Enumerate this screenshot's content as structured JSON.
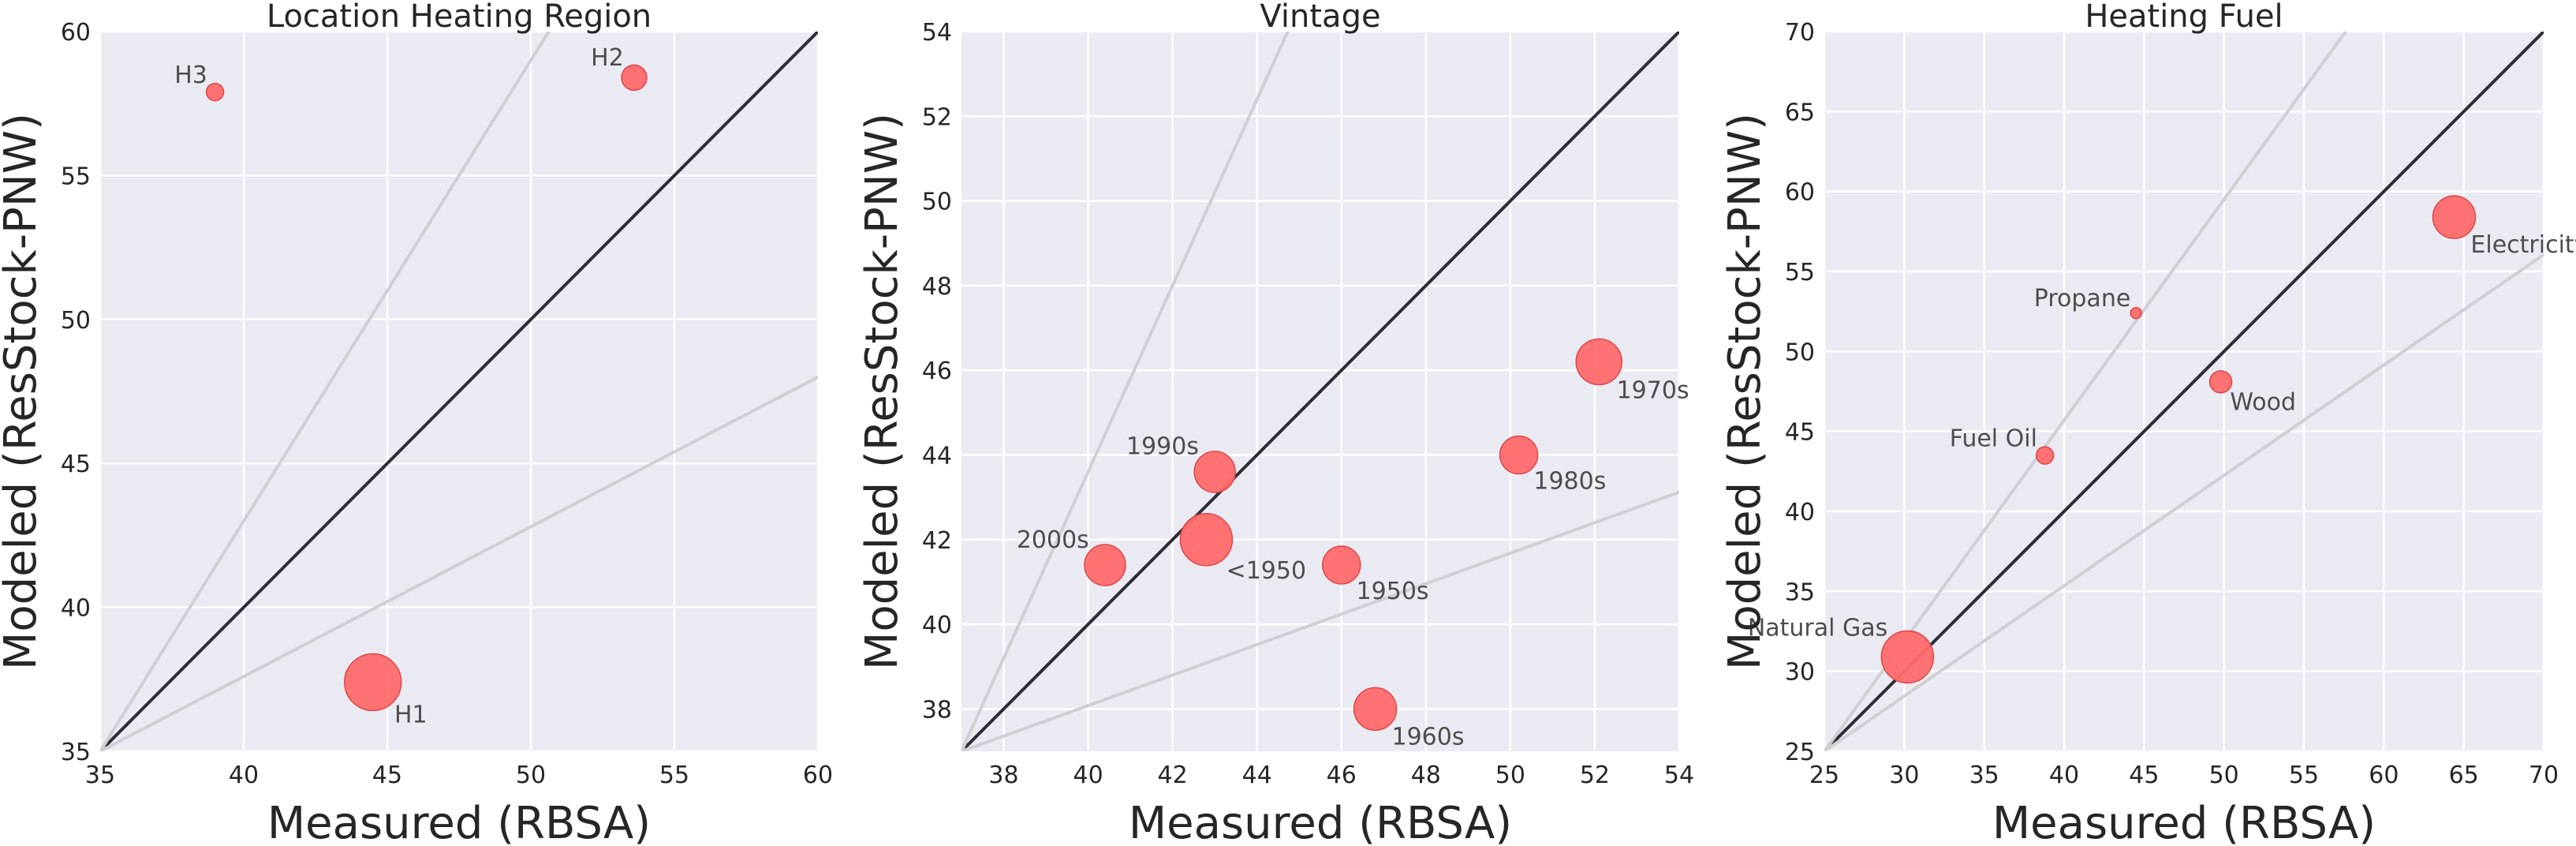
{
  "figure": {
    "x_label": "Measured (RBSA)",
    "y_label": "Modeled (ResStock-PNW)"
  },
  "colors": {
    "background": "#eaeaf2",
    "grid": "#ffffff",
    "points": "#ff6b6b",
    "identity_line": "#2e2e38",
    "reference_lines": "#cfcfd4"
  },
  "chart_data": [
    {
      "type": "scatter",
      "title": "Location Heating Region",
      "xlabel": "Measured (RBSA)",
      "ylabel": "Modeled (ResStock-PNW)",
      "xlim": [
        35,
        60
      ],
      "ylim": [
        35,
        60
      ],
      "xticks": [
        35,
        40,
        45,
        50,
        55,
        60
      ],
      "yticks": [
        35,
        40,
        45,
        50,
        55,
        60
      ],
      "grid": true,
      "reference_slopes": [
        1.0,
        1.6,
        0.52
      ],
      "points": [
        {
          "label": "H1",
          "x": 44.5,
          "y": 37.4,
          "size": 36,
          "label_pos": "below-right"
        },
        {
          "label": "H2",
          "x": 53.6,
          "y": 58.4,
          "size": 16,
          "label_pos": "above-left"
        },
        {
          "label": "H3",
          "x": 39.0,
          "y": 57.9,
          "size": 11,
          "label_pos": "above-left"
        }
      ]
    },
    {
      "type": "scatter",
      "title": "Vintage",
      "xlabel": "Measured (RBSA)",
      "ylabel": "Modeled (ResStock-PNW)",
      "xlim": [
        37,
        54
      ],
      "ylim": [
        37,
        54
      ],
      "xticks": [
        38,
        40,
        42,
        44,
        46,
        48,
        50,
        52,
        54
      ],
      "yticks": [
        38,
        40,
        42,
        44,
        46,
        48,
        50,
        52,
        54
      ],
      "grid": true,
      "reference_slopes": [
        1.0,
        2.2,
        0.36
      ],
      "points": [
        {
          "label": "<1950",
          "x": 42.8,
          "y": 42.0,
          "size": 33,
          "label_pos": "below-right"
        },
        {
          "label": "1950s",
          "x": 46.0,
          "y": 41.4,
          "size": 24,
          "label_pos": "below-right"
        },
        {
          "label": "1960s",
          "x": 46.8,
          "y": 38.0,
          "size": 27,
          "label_pos": "below-right"
        },
        {
          "label": "1970s",
          "x": 52.1,
          "y": 46.2,
          "size": 29,
          "label_pos": "below-right"
        },
        {
          "label": "1980s",
          "x": 50.2,
          "y": 44.0,
          "size": 24,
          "label_pos": "below-right"
        },
        {
          "label": "1990s",
          "x": 43.0,
          "y": 43.6,
          "size": 26,
          "label_pos": "above-left"
        },
        {
          "label": "2000s",
          "x": 40.4,
          "y": 41.4,
          "size": 26,
          "label_pos": "above-left"
        }
      ]
    },
    {
      "type": "scatter",
      "title": "Heating Fuel",
      "xlabel": "Measured (RBSA)",
      "ylabel": "Modeled (ResStock-PNW)",
      "xlim": [
        25,
        70
      ],
      "ylim": [
        25,
        70
      ],
      "xticks": [
        25,
        30,
        35,
        40,
        45,
        50,
        55,
        60,
        65,
        70
      ],
      "yticks": [
        25,
        30,
        35,
        40,
        45,
        50,
        55,
        60,
        65,
        70
      ],
      "grid": true,
      "reference_slopes": [
        1.0,
        1.38,
        0.69
      ],
      "points": [
        {
          "label": "Electricity",
          "x": 64.4,
          "y": 58.4,
          "size": 27,
          "label_pos": "below-right"
        },
        {
          "label": "Natural Gas",
          "x": 30.2,
          "y": 30.9,
          "size": 33,
          "label_pos": "above-left"
        },
        {
          "label": "Fuel Oil",
          "x": 38.8,
          "y": 43.5,
          "size": 11,
          "label_pos": "above-left"
        },
        {
          "label": "Propane",
          "x": 44.5,
          "y": 52.4,
          "size": 7,
          "label_pos": "above-left"
        },
        {
          "label": "Wood",
          "x": 49.8,
          "y": 48.1,
          "size": 14,
          "label_pos": "below-right"
        }
      ]
    }
  ]
}
